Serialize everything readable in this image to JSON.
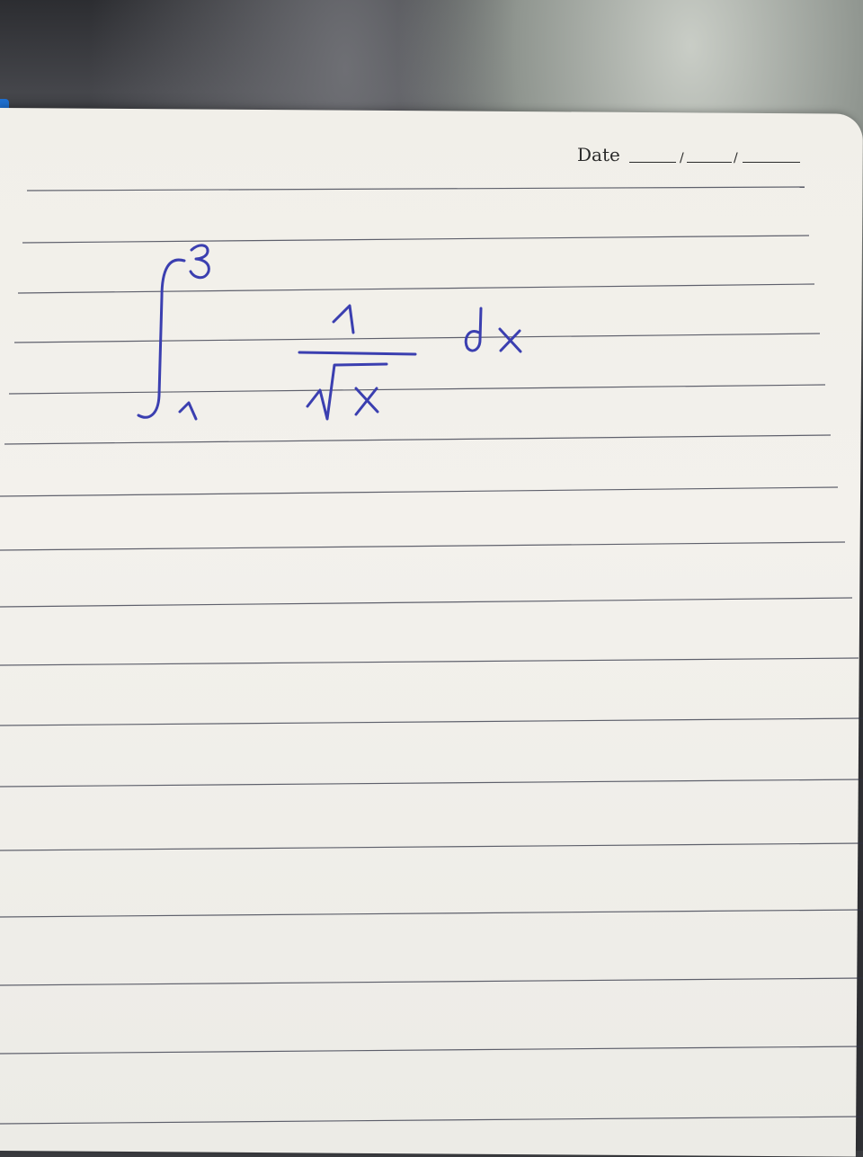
{
  "date_label": "Date",
  "date_separators": [
    "/",
    "/"
  ],
  "handwriting": {
    "integral_upper_limit": "3",
    "integral_lower_limit": "1",
    "numerator": "1",
    "denominator_variable": "x",
    "differential": "dx",
    "ink_color": "#3b3fb0"
  },
  "ruled_line_color": "#2e3142"
}
